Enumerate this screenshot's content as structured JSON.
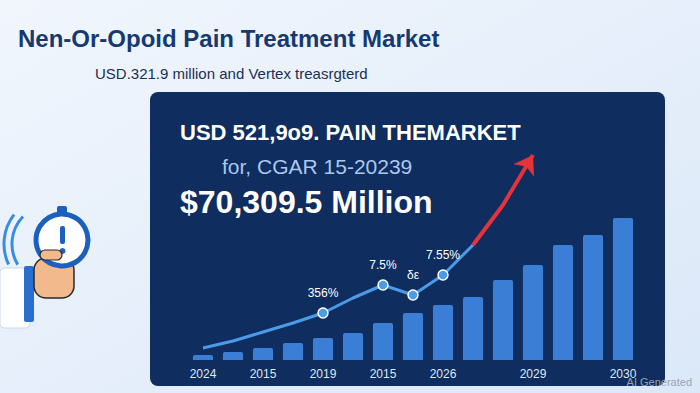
{
  "chart_data": {
    "type": "bar",
    "title": "Nen-Or-Opoid Pain Treatment Market",
    "subtitle": "USD.321.9 million and Vertex treasrgterd",
    "annotations": [
      "USD 521,9o9. PAIN THEMARKET",
      "for, CGAR 15-20239",
      "$70,309.5 Million"
    ],
    "watermark": "AI Generated",
    "categories": [
      "2024",
      null,
      "2015",
      null,
      "2019",
      null,
      "2015",
      null,
      "2026",
      null,
      null,
      "2029",
      null,
      null,
      "2030"
    ],
    "series": [
      {
        "type": "bar",
        "color": "#3a7fd5",
        "values": [
          5,
          8,
          12,
          17,
          22,
          27,
          37,
          47,
          55,
          63,
          80,
          95,
          115,
          125,
          142
        ]
      },
      {
        "type": "line",
        "color": "#4b9be8",
        "marker": "circle",
        "values": [
          12,
          19,
          28,
          37,
          47,
          62,
          75,
          65,
          85,
          115,
          null,
          null,
          null,
          null,
          null
        ],
        "point_labels": [
          null,
          null,
          null,
          null,
          "356%",
          null,
          "7.5%",
          "δε",
          "7.55%",
          null,
          null,
          null,
          null,
          null,
          null
        ]
      },
      {
        "type": "line",
        "color": "#e3343c",
        "marker": "arrow",
        "values": [
          null,
          null,
          null,
          null,
          null,
          null,
          null,
          null,
          null,
          115,
          155,
          205,
          null,
          null,
          null
        ]
      }
    ],
    "ylim": [
      0,
      260
    ],
    "yticks": [
      0,
      260
    ],
    "grid": false,
    "tick_labels": "x"
  }
}
